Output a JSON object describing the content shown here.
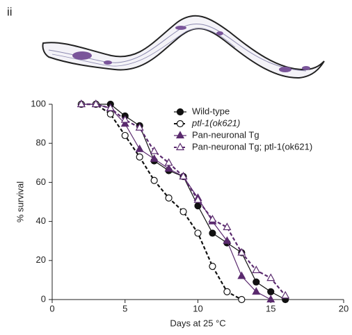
{
  "chart_data": {
    "type": "line",
    "panel_label": "ii",
    "x_label": "Days at 25 °C",
    "y_label": "% survival",
    "xlim": [
      0,
      20
    ],
    "xticks": [
      0,
      5,
      10,
      15,
      20
    ],
    "ylim": [
      0,
      100
    ],
    "yticks": [
      0,
      20,
      40,
      60,
      80,
      100
    ],
    "series": [
      {
        "name": "Wild-type",
        "color": "#111111",
        "marker": "circle",
        "filled": true,
        "dashed": false,
        "x": [
          2,
          3,
          4,
          5,
          6,
          7,
          8,
          9,
          10,
          11,
          12,
          13,
          14,
          15,
          16
        ],
        "values": [
          100,
          100,
          100,
          94,
          89,
          71,
          66,
          63,
          48,
          34,
          29,
          24,
          9,
          4,
          0
        ]
      },
      {
        "name": "ptl-1(ok621)",
        "color": "#111111",
        "marker": "circle",
        "filled": false,
        "dashed": true,
        "x": [
          2,
          3,
          4,
          5,
          6,
          7,
          8,
          9,
          10,
          11,
          12,
          13
        ],
        "values": [
          100,
          100,
          95,
          84,
          73,
          61,
          52,
          45,
          34,
          17,
          4,
          0
        ]
      },
      {
        "name": "Pan-neuronal Tg",
        "color": "#5a2a6e",
        "marker": "triangle",
        "filled": true,
        "dashed": false,
        "x": [
          2,
          3,
          4,
          5,
          6,
          7,
          8,
          9,
          10,
          11,
          12,
          13,
          14,
          15
        ],
        "values": [
          100,
          100,
          98,
          90,
          77,
          72,
          67,
          63,
          52,
          40,
          30,
          12,
          4,
          0
        ]
      },
      {
        "name": "Pan-neuronal Tg; ptl-1(ok621)",
        "color": "#5a2a6e",
        "marker": "triangle",
        "filled": false,
        "dashed": true,
        "x": [
          2,
          3,
          4,
          5,
          6,
          7,
          8,
          9,
          10,
          11,
          12,
          13,
          14,
          15,
          16
        ],
        "values": [
          100,
          100,
          98,
          92,
          88,
          76,
          70,
          63,
          51,
          41,
          37,
          24,
          15,
          11,
          2
        ]
      }
    ]
  }
}
